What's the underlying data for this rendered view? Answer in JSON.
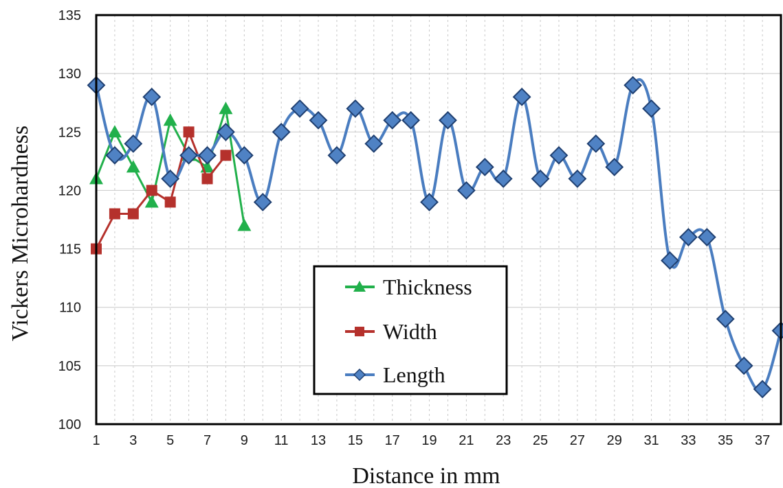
{
  "chart_data": {
    "type": "line",
    "xlabel": "Distance in mm",
    "ylabel": "Vickers Microhardness",
    "xlim": [
      1,
      38
    ],
    "ylim": [
      100,
      135
    ],
    "x_ticks": [
      "1",
      "3",
      "5",
      "7",
      "9",
      "11",
      "13",
      "15",
      "17",
      "19",
      "21",
      "23",
      "25",
      "27",
      "29",
      "31",
      "33",
      "35",
      "37"
    ],
    "y_ticks": [
      "100",
      "105",
      "110",
      "115",
      "120",
      "125",
      "130",
      "135"
    ],
    "grid": "dashed-vertical, solid-horizontal",
    "legend_position": "bottom-center",
    "series": [
      {
        "name": "Thickness",
        "color": "#21b04b",
        "marker": "triangle",
        "smooth": false,
        "x": [
          1,
          2,
          3,
          4,
          5,
          6,
          7,
          8,
          9
        ],
        "values": [
          121,
          125,
          122,
          119,
          126,
          123,
          122,
          127,
          117
        ]
      },
      {
        "name": "Width",
        "color": "#b5312c",
        "marker": "square",
        "smooth": false,
        "x": [
          1,
          2,
          3,
          4,
          5,
          6,
          7,
          8
        ],
        "values": [
          115,
          118,
          118,
          120,
          119,
          125,
          121,
          123
        ]
      },
      {
        "name": "Length",
        "color": "#4a7dc0",
        "marker": "diamond",
        "smooth": true,
        "x": [
          1,
          2,
          3,
          4,
          5,
          6,
          7,
          8,
          9,
          10,
          11,
          12,
          13,
          14,
          15,
          16,
          17,
          18,
          19,
          20,
          21,
          22,
          23,
          24,
          25,
          26,
          27,
          28,
          29,
          30,
          31,
          32,
          33,
          34,
          35,
          36,
          37,
          38
        ],
        "values": [
          129,
          123,
          124,
          128,
          121,
          123,
          123,
          125,
          123,
          119,
          125,
          127,
          126,
          123,
          127,
          124,
          126,
          126,
          119,
          126,
          120,
          122,
          121,
          128,
          121,
          123,
          121,
          124,
          122,
          129,
          127,
          114,
          116,
          116,
          109,
          105,
          103,
          108
        ]
      }
    ]
  }
}
